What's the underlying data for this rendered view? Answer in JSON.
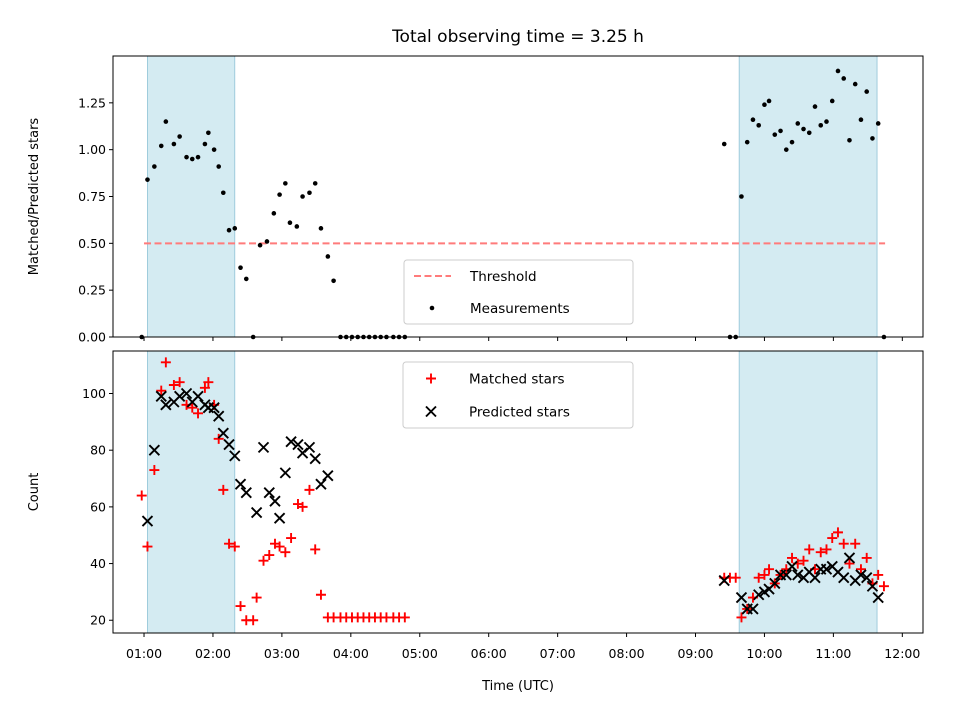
{
  "figure": {
    "title": "Total observing time = 3.25 h"
  },
  "colors": {
    "shade": "#add8e6",
    "threshold": "#ff7b7b",
    "measurement": "#000000",
    "matched": "#ff0000",
    "predicted": "#000000"
  },
  "chart_data": [
    {
      "type": "scatter",
      "ylabel": "Matched/Predicted stars",
      "xlabel": "",
      "xlim": [
        "00:33",
        "12:18"
      ],
      "ylim": [
        0,
        1.5
      ],
      "yticks": [
        "0.00",
        "0.25",
        "0.50",
        "0.75",
        "1.00",
        "1.25"
      ],
      "ytick_values": [
        0,
        0.25,
        0.5,
        0.75,
        1.0,
        1.25
      ],
      "shaded_spans": [
        [
          "01:03",
          "02:19"
        ],
        [
          "09:38",
          "11:38"
        ]
      ],
      "threshold": {
        "name": "Threshold",
        "y": 0.5,
        "x_range": [
          "01:00",
          "11:45"
        ],
        "style": "dashed"
      },
      "legend": {
        "position": "lower-center",
        "entries": [
          "Threshold",
          "Measurements"
        ]
      },
      "series": [
        {
          "name": "Measurements",
          "marker": "dot",
          "points": [
            [
              "00:58",
              0.0
            ],
            [
              "01:03",
              0.84
            ],
            [
              "01:09",
              0.91
            ],
            [
              "01:15",
              1.02
            ],
            [
              "01:19",
              1.15
            ],
            [
              "01:26",
              1.03
            ],
            [
              "01:31",
              1.07
            ],
            [
              "01:37",
              0.96
            ],
            [
              "01:42",
              0.95
            ],
            [
              "01:47",
              0.96
            ],
            [
              "01:53",
              1.03
            ],
            [
              "01:56",
              1.09
            ],
            [
              "02:01",
              1.0
            ],
            [
              "02:05",
              0.91
            ],
            [
              "02:09",
              0.77
            ],
            [
              "02:14",
              0.57
            ],
            [
              "02:19",
              0.58
            ],
            [
              "02:24",
              0.37
            ],
            [
              "02:29",
              0.31
            ],
            [
              "02:35",
              0.0
            ],
            [
              "02:41",
              0.49
            ],
            [
              "02:47",
              0.51
            ],
            [
              "02:53",
              0.66
            ],
            [
              "02:58",
              0.76
            ],
            [
              "03:03",
              0.82
            ],
            [
              "03:07",
              0.61
            ],
            [
              "03:13",
              0.59
            ],
            [
              "03:18",
              0.75
            ],
            [
              "03:24",
              0.77
            ],
            [
              "03:29",
              0.82
            ],
            [
              "03:34",
              0.58
            ],
            [
              "03:40",
              0.43
            ],
            [
              "03:45",
              0.3
            ],
            [
              "03:51",
              0.0
            ],
            [
              "03:56",
              0.0
            ],
            [
              "04:01",
              0.0
            ],
            [
              "04:06",
              0.0
            ],
            [
              "04:11",
              0.0
            ],
            [
              "04:16",
              0.0
            ],
            [
              "04:21",
              0.0
            ],
            [
              "04:26",
              0.0
            ],
            [
              "04:31",
              0.0
            ],
            [
              "04:37",
              0.0
            ],
            [
              "04:42",
              0.0
            ],
            [
              "04:47",
              0.0
            ],
            [
              "09:25",
              1.03
            ],
            [
              "09:30",
              0.0
            ],
            [
              "09:35",
              0.0
            ],
            [
              "09:40",
              0.75
            ],
            [
              "09:45",
              1.04
            ],
            [
              "09:50",
              1.16
            ],
            [
              "09:55",
              1.13
            ],
            [
              "10:00",
              1.24
            ],
            [
              "10:04",
              1.26
            ],
            [
              "10:09",
              1.08
            ],
            [
              "10:14",
              1.1
            ],
            [
              "10:19",
              1.0
            ],
            [
              "10:24",
              1.04
            ],
            [
              "10:29",
              1.14
            ],
            [
              "10:34",
              1.11
            ],
            [
              "10:39",
              1.09
            ],
            [
              "10:44",
              1.23
            ],
            [
              "10:49",
              1.13
            ],
            [
              "10:54",
              1.15
            ],
            [
              "10:59",
              1.26
            ],
            [
              "11:04",
              1.42
            ],
            [
              "11:09",
              1.38
            ],
            [
              "11:14",
              1.05
            ],
            [
              "11:19",
              1.35
            ],
            [
              "11:24",
              1.16
            ],
            [
              "11:29",
              1.31
            ],
            [
              "11:34",
              1.06
            ],
            [
              "11:39",
              1.14
            ],
            [
              "11:44",
              0.0
            ]
          ]
        }
      ]
    },
    {
      "type": "scatter",
      "ylabel": "Count",
      "xlabel": "Time (UTC)",
      "xlim": [
        "00:33",
        "12:18"
      ],
      "ylim": [
        15.5,
        115
      ],
      "xticks": [
        "01:00",
        "02:00",
        "03:00",
        "04:00",
        "05:00",
        "06:00",
        "07:00",
        "08:00",
        "09:00",
        "10:00",
        "11:00",
        "12:00"
      ],
      "yticks": [
        "20",
        "40",
        "60",
        "80",
        "100"
      ],
      "ytick_values": [
        20,
        40,
        60,
        80,
        100
      ],
      "shaded_spans": [
        [
          "01:03",
          "02:19"
        ],
        [
          "09:38",
          "11:38"
        ]
      ],
      "legend": {
        "position": "upper-center",
        "entries": [
          "Matched stars",
          "Predicted stars"
        ]
      },
      "series": [
        {
          "name": "Matched stars",
          "marker": "plus",
          "points": [
            [
              "00:58",
              64
            ],
            [
              "01:03",
              46
            ],
            [
              "01:09",
              73
            ],
            [
              "01:15",
              101
            ],
            [
              "01:19",
              111
            ],
            [
              "01:26",
              103
            ],
            [
              "01:31",
              104
            ],
            [
              "01:37",
              96
            ],
            [
              "01:42",
              95
            ],
            [
              "01:47",
              93
            ],
            [
              "01:53",
              102
            ],
            [
              "01:56",
              104
            ],
            [
              "02:01",
              96
            ],
            [
              "02:05",
              84
            ],
            [
              "02:09",
              66
            ],
            [
              "02:14",
              47
            ],
            [
              "02:19",
              46
            ],
            [
              "02:24",
              25
            ],
            [
              "02:29",
              20
            ],
            [
              "02:35",
              20
            ],
            [
              "02:38",
              28
            ],
            [
              "02:44",
              41
            ],
            [
              "02:49",
              43
            ],
            [
              "02:54",
              47
            ],
            [
              "02:58",
              46
            ],
            [
              "03:03",
              44
            ],
            [
              "03:08",
              49
            ],
            [
              "03:14",
              61
            ],
            [
              "03:18",
              60
            ],
            [
              "03:24",
              66
            ],
            [
              "03:29",
              45
            ],
            [
              "03:34",
              29
            ],
            [
              "03:40",
              21
            ],
            [
              "03:45",
              21
            ],
            [
              "03:51",
              21
            ],
            [
              "03:56",
              21
            ],
            [
              "04:01",
              21
            ],
            [
              "04:06",
              21
            ],
            [
              "04:11",
              21
            ],
            [
              "04:16",
              21
            ],
            [
              "04:21",
              21
            ],
            [
              "04:26",
              21
            ],
            [
              "04:31",
              21
            ],
            [
              "04:37",
              21
            ],
            [
              "04:42",
              21
            ],
            [
              "04:47",
              21
            ],
            [
              "09:25",
              35
            ],
            [
              "09:30",
              35
            ],
            [
              "09:35",
              35
            ],
            [
              "09:40",
              21
            ],
            [
              "09:45",
              24
            ],
            [
              "09:50",
              28
            ],
            [
              "09:55",
              35
            ],
            [
              "10:00",
              36
            ],
            [
              "10:04",
              38
            ],
            [
              "10:09",
              33
            ],
            [
              "10:14",
              36
            ],
            [
              "10:19",
              38
            ],
            [
              "10:24",
              42
            ],
            [
              "10:29",
              40
            ],
            [
              "10:34",
              41
            ],
            [
              "10:39",
              45
            ],
            [
              "10:44",
              38
            ],
            [
              "10:49",
              44
            ],
            [
              "10:54",
              45
            ],
            [
              "10:59",
              49
            ],
            [
              "11:04",
              51
            ],
            [
              "11:09",
              47
            ],
            [
              "11:14",
              40
            ],
            [
              "11:19",
              47
            ],
            [
              "11:24",
              38
            ],
            [
              "11:29",
              42
            ],
            [
              "11:34",
              33
            ],
            [
              "11:39",
              36
            ],
            [
              "11:44",
              32
            ]
          ]
        },
        {
          "name": "Predicted stars",
          "marker": "x",
          "points": [
            [
              "01:03",
              55
            ],
            [
              "01:09",
              80
            ],
            [
              "01:15",
              99
            ],
            [
              "01:19",
              96
            ],
            [
              "01:26",
              97
            ],
            [
              "01:31",
              99
            ],
            [
              "01:37",
              100
            ],
            [
              "01:42",
              97
            ],
            [
              "01:47",
              99
            ],
            [
              "01:53",
              96
            ],
            [
              "01:56",
              95
            ],
            [
              "02:01",
              95
            ],
            [
              "02:05",
              92
            ],
            [
              "02:09",
              86
            ],
            [
              "02:14",
              82
            ],
            [
              "02:19",
              78
            ],
            [
              "02:24",
              68
            ],
            [
              "02:29",
              65
            ],
            [
              "02:38",
              58
            ],
            [
              "02:44",
              81
            ],
            [
              "02:49",
              65
            ],
            [
              "02:54",
              62
            ],
            [
              "02:58",
              56
            ],
            [
              "03:03",
              72
            ],
            [
              "03:08",
              83
            ],
            [
              "03:14",
              82
            ],
            [
              "03:18",
              79
            ],
            [
              "03:24",
              81
            ],
            [
              "03:29",
              77
            ],
            [
              "03:34",
              68
            ],
            [
              "03:40",
              71
            ],
            [
              "09:25",
              34
            ],
            [
              "09:40",
              28
            ],
            [
              "09:45",
              24
            ],
            [
              "09:50",
              24
            ],
            [
              "09:55",
              29
            ],
            [
              "10:00",
              30
            ],
            [
              "10:04",
              31
            ],
            [
              "10:09",
              33
            ],
            [
              "10:14",
              36
            ],
            [
              "10:19",
              36
            ],
            [
              "10:24",
              39
            ],
            [
              "10:29",
              36
            ],
            [
              "10:34",
              35
            ],
            [
              "10:39",
              37
            ],
            [
              "10:44",
              35
            ],
            [
              "10:49",
              38
            ],
            [
              "10:54",
              38
            ],
            [
              "10:59",
              39
            ],
            [
              "11:04",
              37
            ],
            [
              "11:09",
              35
            ],
            [
              "11:14",
              42
            ],
            [
              "11:19",
              34
            ],
            [
              "11:24",
              36
            ],
            [
              "11:29",
              35
            ],
            [
              "11:34",
              32
            ],
            [
              "11:39",
              28
            ]
          ]
        }
      ]
    }
  ]
}
